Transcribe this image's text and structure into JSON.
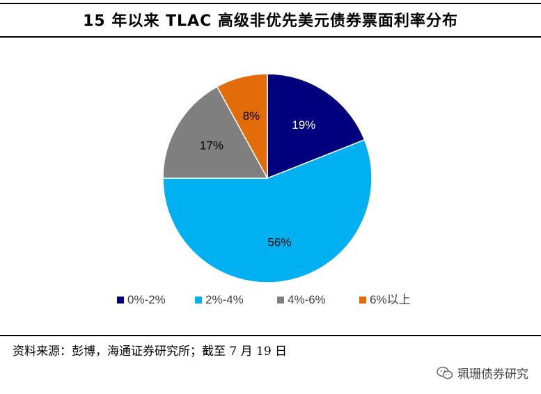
{
  "title": "15 年以来 TLAC 高级非优先美元债券票面利率分布",
  "source": "资料来源：彭博，海通证券研究所；截至 7 月 19 日",
  "watermark": "珮珊债券研究",
  "chart_data": {
    "type": "pie",
    "title": "15 年以来 TLAC 高级非优先美元债券票面利率分布",
    "start_angle": "12 o'clock, clockwise",
    "legend_position": "bottom",
    "slices": [
      {
        "name": "0%-2%",
        "value": 19,
        "label": "19%",
        "color": "#00007f",
        "label_color": "#ffffff"
      },
      {
        "name": "2%-4%",
        "value": 56,
        "label": "56%",
        "color": "#00b0f0",
        "label_color": "#000000"
      },
      {
        "name": "4%-6%",
        "value": 17,
        "label": "17%",
        "color": "#7f7f7f",
        "label_color": "#000000"
      },
      {
        "name": "6%以上",
        "value": 8,
        "label": "8%",
        "color": "#e36c0a",
        "label_color": "#000000"
      }
    ]
  }
}
